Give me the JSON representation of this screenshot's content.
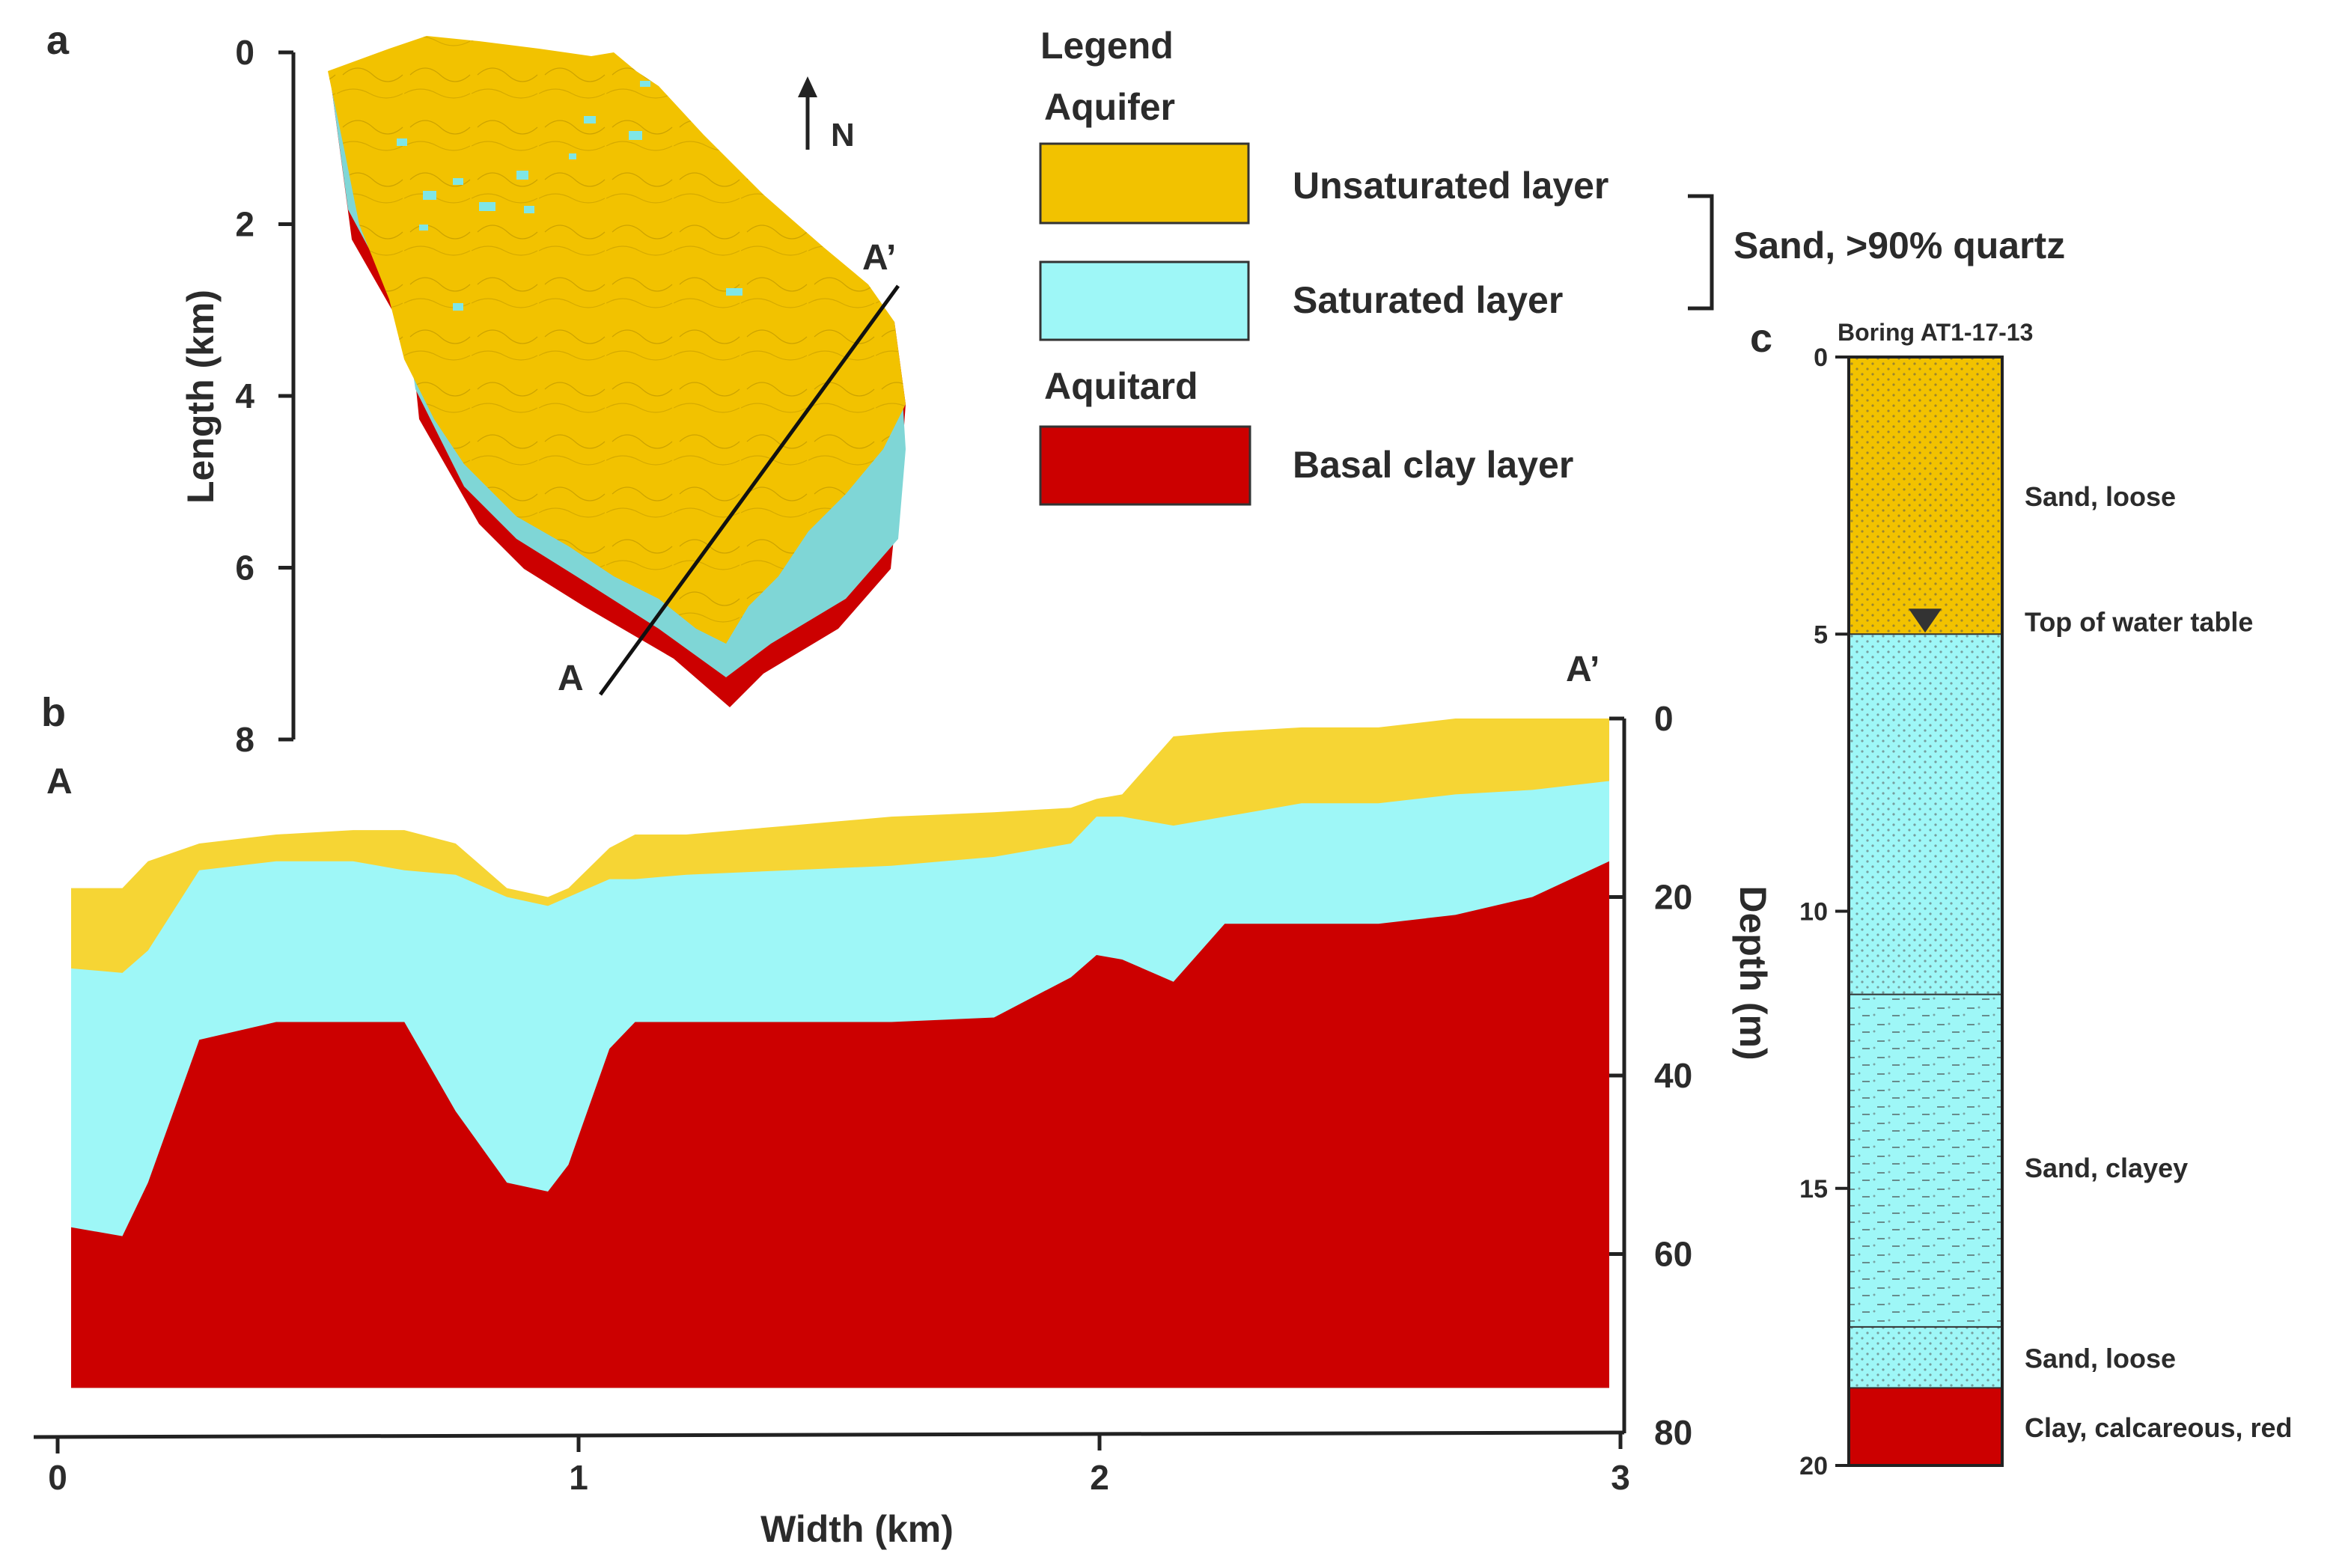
{
  "panel_labels": {
    "a": "a",
    "b": "b",
    "c": "c"
  },
  "colors": {
    "unsaturated": "#f2c200",
    "unsaturated_section": "#f6d534",
    "saturated": "#9ef7f7",
    "block_saturated": "#7fd6d6",
    "clay": "#cc0000",
    "axis": "#222222"
  },
  "map": {
    "ylabel": "Length (km)",
    "yticks": [
      "0",
      "2",
      "4",
      "6",
      "8"
    ],
    "ylim": [
      0,
      8
    ],
    "north_label": "N",
    "section_start": "A",
    "section_end": "A’"
  },
  "legend": {
    "title": "Legend",
    "group_aquifer": "Aquifer",
    "group_aquitard": "Aquitard",
    "unsaturated_label": "Unsaturated layer",
    "saturated_label": "Saturated layer",
    "clay_label": "Basal clay layer",
    "bracket_label": "Sand, >90% quartz"
  },
  "section": {
    "start_label": "A",
    "end_label": "A’",
    "xlabel": "Width (km)",
    "xticks": [
      "0",
      "1",
      "2",
      "3"
    ],
    "xlim": [
      0,
      3
    ],
    "ylabel": "Depth (m)",
    "yticks": [
      "0",
      "20",
      "40",
      "60",
      "80"
    ],
    "ylim": [
      0,
      80
    ],
    "base_depth": 75,
    "x_km": [
      0.0,
      0.1,
      0.15,
      0.25,
      0.4,
      0.55,
      0.65,
      0.75,
      0.85,
      0.93,
      0.97,
      1.05,
      1.1,
      1.2,
      1.4,
      1.6,
      1.8,
      1.95,
      2.0,
      2.05,
      2.15,
      2.25,
      2.4,
      2.55,
      2.7,
      2.85,
      3.0
    ],
    "ground_depth": [
      19,
      19,
      16,
      14,
      13,
      12.5,
      12.5,
      14,
      19,
      20,
      19,
      14.5,
      13,
      13,
      12,
      11,
      10.5,
      10,
      9,
      8.5,
      2,
      1.5,
      1,
      1,
      0,
      0,
      0
    ],
    "water_table_depth": [
      28,
      28.5,
      26,
      17,
      16,
      16,
      17,
      17.5,
      20,
      21,
      20,
      18,
      18,
      17.5,
      17,
      16.5,
      15.5,
      14,
      11,
      11,
      12,
      11,
      9.5,
      9.5,
      8.5,
      8,
      7
    ],
    "clay_top_depth": [
      57,
      58,
      52,
      36,
      34,
      34,
      34,
      44,
      52,
      53,
      50,
      37,
      34,
      34,
      34,
      34,
      33.5,
      29,
      26.5,
      27,
      29.5,
      23,
      23,
      23,
      22,
      20,
      16
    ]
  },
  "boring": {
    "title": "Boring AT1-17-13",
    "yticks": [
      "0",
      "5",
      "10",
      "15",
      "20"
    ],
    "ylim": [
      0,
      20
    ],
    "water_table_depth": 5,
    "water_table_label": "Top of water table",
    "layers": [
      {
        "top": 0,
        "bottom": 5,
        "fill": "unsaturated",
        "label": "Sand, loose"
      },
      {
        "top": 5,
        "bottom": 11.5,
        "fill": "saturated",
        "label": ""
      },
      {
        "top": 11.5,
        "bottom": 17.5,
        "fill": "saturated",
        "label": "Sand, clayey"
      },
      {
        "top": 17.5,
        "bottom": 18.6,
        "fill": "saturated",
        "label": "Sand, loose"
      },
      {
        "top": 18.6,
        "bottom": 20,
        "fill": "clay",
        "label": "Clay, calcareous, red"
      }
    ]
  }
}
